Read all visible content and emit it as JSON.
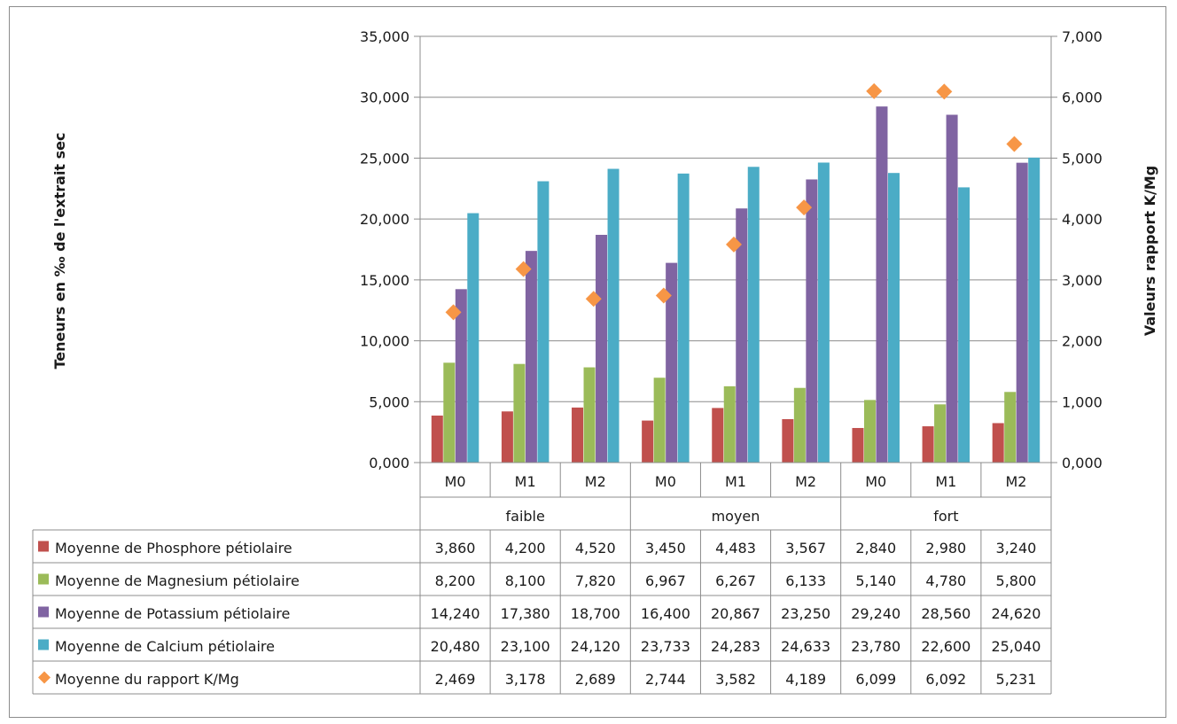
{
  "chart_data": {
    "type": "bar",
    "x": {
      "categories": [
        "M0",
        "M1",
        "M2",
        "M0",
        "M1",
        "M2",
        "M0",
        "M1",
        "M2"
      ],
      "groups": [
        {
          "label": "faible",
          "span": 3
        },
        {
          "label": "moyen",
          "span": 3
        },
        {
          "label": "fort",
          "span": 3
        }
      ]
    },
    "y_left": {
      "label": "Teneurs en ‰ de l'extrait sec",
      "range": [
        0,
        35
      ],
      "ticks": [
        "0,000",
        "5,000",
        "10,000",
        "15,000",
        "20,000",
        "25,000",
        "30,000",
        "35,000"
      ]
    },
    "y_right": {
      "label": "Valeurs rapport K/Mg",
      "range": [
        0,
        7
      ],
      "ticks": [
        "0,000",
        "1,000",
        "2,000",
        "3,000",
        "4,000",
        "5,000",
        "6,000",
        "7,000"
      ]
    },
    "series": [
      {
        "name": "Moyenne de Phosphore pétiolaire",
        "kind": "bar",
        "axis": "left",
        "color": "#c0504d",
        "values": [
          3.86,
          4.2,
          4.52,
          3.45,
          4.483,
          3.567,
          2.84,
          2.98,
          3.24
        ],
        "labels": [
          "3,860",
          "4,200",
          "4,520",
          "3,450",
          "4,483",
          "3,567",
          "2,840",
          "2,980",
          "3,240"
        ]
      },
      {
        "name": "Moyenne de Magnesium pétiolaire",
        "kind": "bar",
        "axis": "left",
        "color": "#9bbb59",
        "values": [
          8.2,
          8.1,
          7.82,
          6.967,
          6.267,
          6.133,
          5.14,
          4.78,
          5.8
        ],
        "labels": [
          "8,200",
          "8,100",
          "7,820",
          "6,967",
          "6,267",
          "6,133",
          "5,140",
          "4,780",
          "5,800"
        ]
      },
      {
        "name": "Moyenne de Potassium pétiolaire",
        "kind": "bar",
        "axis": "left",
        "color": "#8064a2",
        "values": [
          14.24,
          17.38,
          18.7,
          16.4,
          20.867,
          23.25,
          29.24,
          28.56,
          24.62
        ],
        "labels": [
          "14,240",
          "17,380",
          "18,700",
          "16,400",
          "20,867",
          "23,250",
          "29,240",
          "28,560",
          "24,620"
        ]
      },
      {
        "name": "Moyenne de Calcium pétiolaire",
        "kind": "bar",
        "axis": "left",
        "color": "#4bacc6",
        "values": [
          20.48,
          23.1,
          24.12,
          23.733,
          24.283,
          24.633,
          23.78,
          22.6,
          25.04
        ],
        "labels": [
          "20,480",
          "23,100",
          "24,120",
          "23,733",
          "24,283",
          "24,633",
          "23,780",
          "22,600",
          "25,040"
        ]
      },
      {
        "name": "Moyenne du rapport K/Mg",
        "kind": "marker",
        "axis": "right",
        "color": "#f79646",
        "values": [
          2.469,
          3.178,
          2.689,
          2.744,
          3.582,
          4.189,
          6.099,
          6.092,
          5.231
        ],
        "labels": [
          "2,469",
          "3,178",
          "2,689",
          "2,744",
          "3,582",
          "4,189",
          "6,099",
          "6,092",
          "5,231"
        ]
      }
    ],
    "data_table": true,
    "legend": "in data table"
  }
}
